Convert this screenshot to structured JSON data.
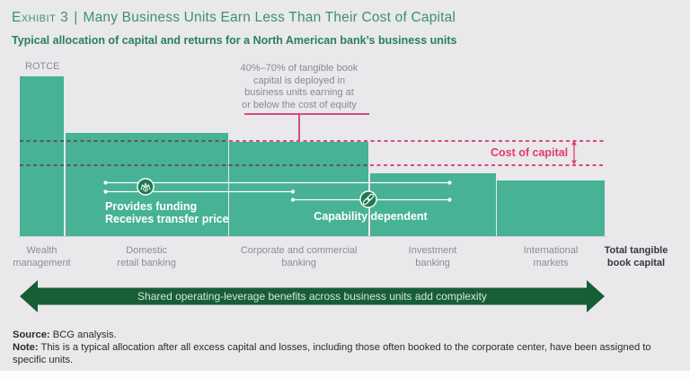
{
  "header": {
    "exhibit_label": "Exhibit 3",
    "divider": "|",
    "title": "Many Business Units Earn Less Than Their Cost of Capital",
    "subtitle": "Typical allocation of capital and returns for a North American bank’s business units"
  },
  "chart_data": {
    "type": "bar",
    "variant": "variable-width (capital share x returns)",
    "title": "Typical allocation of capital and returns for a North American bank’s business units",
    "ylabel": "ROTCE",
    "xlabel": "Total tangible book capital",
    "axis_note": "no numeric tick labels shown; heights and widths estimated from figure geometry",
    "bars": [
      {
        "label": "Wealth\nmanagement",
        "capital_share_pct": 7.6,
        "rotce_index": 100
      },
      {
        "label": "Domestic\nretail banking",
        "capital_share_pct": 28.1,
        "rotce_index": 64.6
      },
      {
        "label": "Corporate and commercial\nbanking",
        "capital_share_pct": 24.0,
        "rotce_index": 59.0
      },
      {
        "label": "Investment\nbanking",
        "capital_share_pct": 21.7,
        "rotce_index": 39.3
      },
      {
        "label": "International\nmarkets",
        "capital_share_pct": 18.6,
        "rotce_index": 34.8
      }
    ],
    "cost_of_capital_band": {
      "label": "Cost of capital",
      "upper_index": 59.6,
      "lower_index": 44.4
    },
    "annotation": "40%–70% of tangible book\ncapital is deployed in\nbusiness units earning at\nor below the cost of equity",
    "total_label": "Total tangible\nbook capital",
    "grid": false,
    "legend_position": "none"
  },
  "overlays": {
    "provides_funding": "Provides funding\nReceives transfer price",
    "capability": "Capability dependent",
    "icons": {
      "funding": "coin-crown-icon",
      "capability": "link-icon",
      "cost_band": "vertical-double-arrow-icon",
      "banner": "double-headed-arrow"
    }
  },
  "bottom_arrow": {
    "text": "Shared operating-leverage benefits across business units add complexity"
  },
  "footer": {
    "source_label": "Source:",
    "source_text": "BCG analysis.",
    "note_label": "Note:",
    "note_text": "This is a typical allocation after all excess capital and losses, including those often booked to the corporate center, have been assigned to specific units."
  },
  "colors": {
    "background": "#e9e8eb",
    "bar_green": "#47b295",
    "dark_green": "#1e7950",
    "banner_green": "#175e37",
    "title_green": "#3b9274",
    "subtitle_green": "#297f62",
    "pink": "#d8497c",
    "pink_text": "#e03b72",
    "dash_in_bar": "#5c5660",
    "gray_text": "#8b8b90",
    "footer_text": "#2b2b2d"
  }
}
